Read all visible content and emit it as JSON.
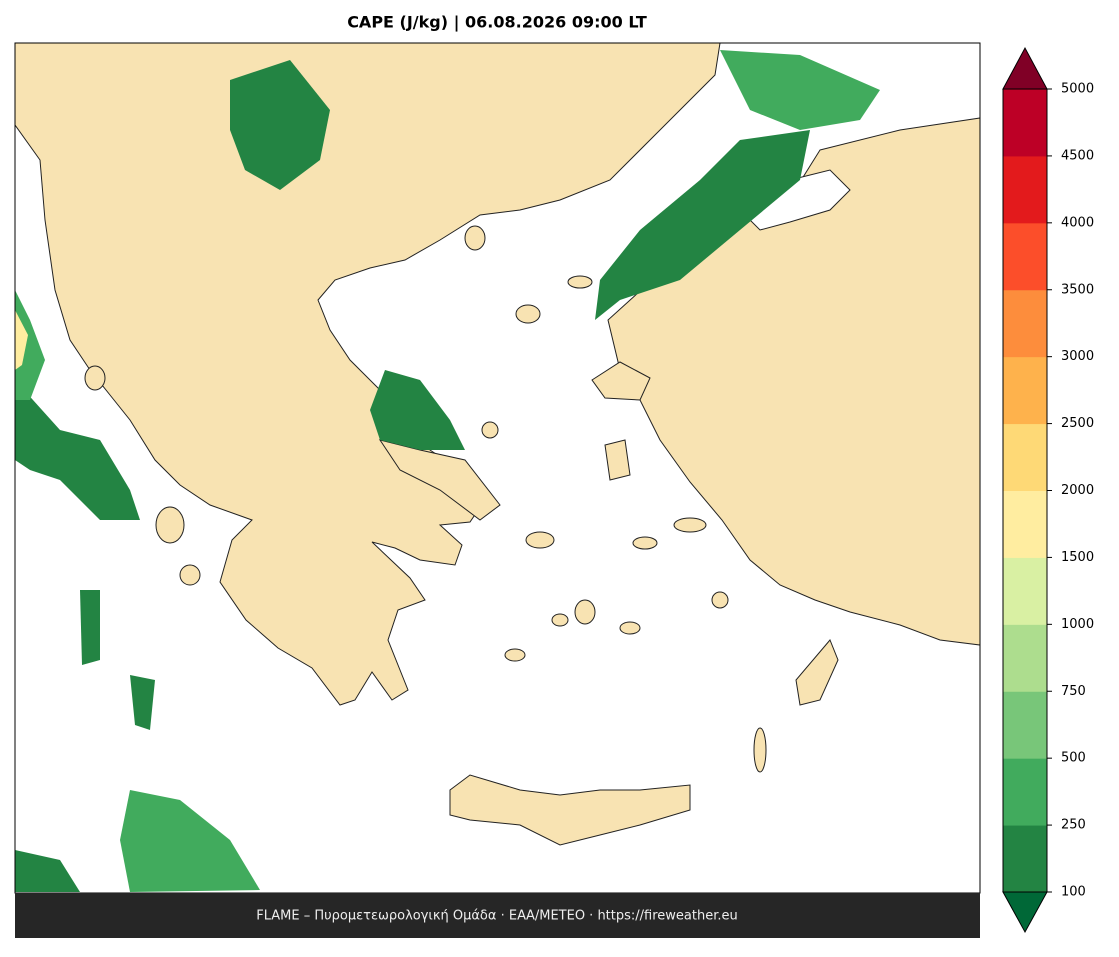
{
  "title": "CAPE (J/kg)  |  06.08.2026 09:00 LT",
  "colorbar": {
    "ticks": [
      100,
      250,
      500,
      750,
      1000,
      1500,
      2000,
      2500,
      3000,
      3500,
      4000,
      4500,
      5000
    ],
    "colors": [
      "#238443",
      "#41ab5d",
      "#78c679",
      "#addd8e",
      "#d9f0a3",
      "#ffeda0",
      "#fed976",
      "#feb24c",
      "#fd8d3c",
      "#fc4e2a",
      "#e31a1c",
      "#bd0026"
    ],
    "under_color": "#006837",
    "over_color": "#800026"
  },
  "footer": "FLAME – Πυρομετεωρολογική Ομάδα · ΕΑΑ/METEO · https://fireweather.eu"
}
